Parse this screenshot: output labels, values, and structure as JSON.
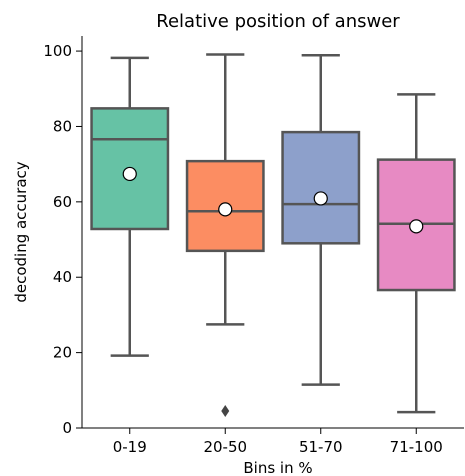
{
  "chart_data": {
    "type": "box",
    "title": "Relative position of answer",
    "xlabel": "Bins in %",
    "ylabel": "decoding accuracy",
    "ylim": [
      0,
      104
    ],
    "yticks": [
      0,
      20,
      40,
      60,
      80,
      100
    ],
    "grid": false,
    "categories": [
      "0-19",
      "20-50",
      "51-70",
      "71-100"
    ],
    "boxes": [
      {
        "label": "0-19",
        "whisker_low": 19.2,
        "q1": 52.8,
        "median": 76.6,
        "q3": 84.8,
        "whisker_high": 98.2,
        "mean": 67.4,
        "outliers": [],
        "color": "#66c2a5"
      },
      {
        "label": "20-50",
        "whisker_low": 27.5,
        "q1": 47.0,
        "median": 57.5,
        "q3": 70.8,
        "whisker_high": 99.1,
        "mean": 58.0,
        "outliers": [
          4.5
        ],
        "color": "#fc8d62"
      },
      {
        "label": "51-70",
        "whisker_low": 11.5,
        "q1": 49.0,
        "median": 59.4,
        "q3": 78.5,
        "whisker_high": 98.9,
        "mean": 60.9,
        "outliers": [],
        "color": "#8da0cb"
      },
      {
        "label": "71-100",
        "whisker_low": 4.2,
        "q1": 36.6,
        "median": 54.2,
        "q3": 71.2,
        "whisker_high": 88.5,
        "mean": 53.5,
        "outliers": [],
        "color": "#e78ac3"
      }
    ]
  }
}
